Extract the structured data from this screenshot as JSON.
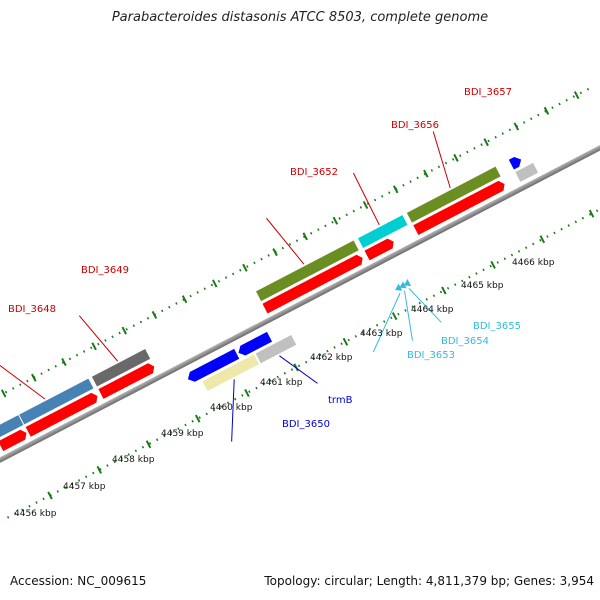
{
  "title": "Parabacteroides distasonis ATCC 8503, complete genome",
  "footer": {
    "accession": "Accession: NC_009615",
    "summary": "Topology: circular; Length: 4,811,379 bp; Genes: 3,954"
  },
  "scale_labels": [
    "4456 kbp",
    "4457 kbp",
    "4458 kbp",
    "4459 kbp",
    "4460 kbp",
    "4461 kbp",
    "4462 kbp",
    "4463 kbp",
    "4464 kbp",
    "4465 kbp",
    "4466 kbp"
  ],
  "gene_labels_top": [
    {
      "text": "BDI_3648",
      "color": "#cc0000"
    },
    {
      "text": "BDI_3649",
      "color": "#cc0000"
    },
    {
      "text": "BDI_3652",
      "color": "#cc0000"
    },
    {
      "text": "BDI_3656",
      "color": "#cc0000"
    },
    {
      "text": "BDI_3657",
      "color": "#cc0000"
    }
  ],
  "gene_labels_bottom": [
    {
      "text": "BDI_3650",
      "color": "#0000cc"
    },
    {
      "text": "trmB",
      "color": "#0000cc"
    },
    {
      "text": "BDI_3653",
      "color": "#33bbdd"
    },
    {
      "text": "BDI_3654",
      "color": "#33bbdd"
    },
    {
      "text": "BDI_3655",
      "color": "#33bbdd"
    }
  ],
  "colors": {
    "red": "#ff0000",
    "olive": "#6b8e23",
    "steelblue": "#4682b4",
    "gray": "#696969",
    "blue": "#0000ff",
    "cyan": "#00ced1",
    "khaki": "#eee8aa",
    "silver": "#c0c0c0",
    "navy": "#00006b",
    "backbone": "#808080",
    "tick_green": "#1a7a1a"
  }
}
